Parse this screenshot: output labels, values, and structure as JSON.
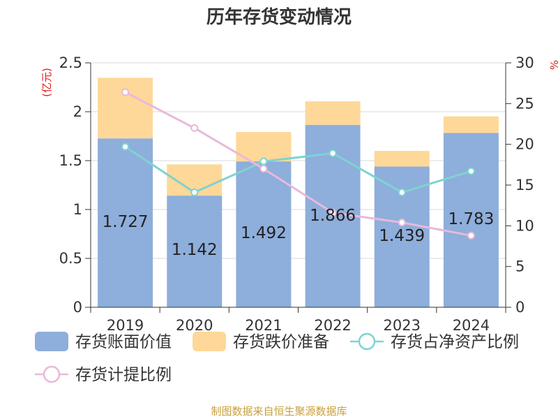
{
  "chart_data": {
    "type": "bar",
    "title": "历年存货变动情况",
    "categories": [
      "2019",
      "2020",
      "2021",
      "2022",
      "2023",
      "2024"
    ],
    "left_axis": {
      "unit": "(亿元)",
      "ylim": [
        0,
        2.5
      ],
      "ticks": [
        "0",
        "0.5",
        "1",
        "1.5",
        "2",
        "2.5"
      ]
    },
    "right_axis": {
      "unit": "%",
      "ylim": [
        0,
        30
      ],
      "ticks": [
        "0",
        "5",
        "10",
        "15",
        "20",
        "25",
        "30"
      ]
    },
    "series": [
      {
        "name": "存货账面价值",
        "kind": "stacked-bar",
        "axis": "left",
        "color": "#8eaedb",
        "values": [
          1.727,
          1.142,
          1.492,
          1.866,
          1.439,
          1.783
        ],
        "labels": [
          "1.727",
          "1.142",
          "1.492",
          "1.866",
          "1.439",
          "1.783"
        ]
      },
      {
        "name": "存货跌价准备",
        "kind": "stacked-bar",
        "axis": "left",
        "color": "#fdd898",
        "values": [
          0.62,
          0.32,
          0.3,
          0.24,
          0.16,
          0.17
        ]
      },
      {
        "name": "存货占净资产比例",
        "kind": "line",
        "axis": "right",
        "color": "#7ed3d1",
        "values": [
          19.7,
          14.1,
          17.9,
          18.9,
          14.1,
          16.7
        ]
      },
      {
        "name": "存货计提比例",
        "kind": "line",
        "axis": "right",
        "color": "#e8b9da",
        "values": [
          26.4,
          22.0,
          17.0,
          11.6,
          10.4,
          8.8
        ]
      }
    ],
    "grid": true,
    "legend_position": "bottom"
  },
  "source_text": "制图数据来自恒生聚源数据库"
}
